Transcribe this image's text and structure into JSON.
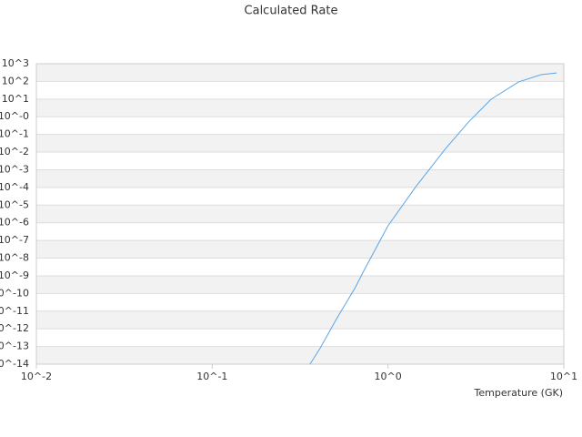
{
  "chart_data": {
    "type": "line",
    "title": "Calculated Rate",
    "x_label": "Temperature (GK)",
    "xscale": "log",
    "yscale": "log",
    "xlim": [
      0.01,
      10
    ],
    "xticks": [
      {
        "value": 0.01,
        "label": "10^-2"
      },
      {
        "value": 0.1,
        "label": "10^-1"
      },
      {
        "value": 1,
        "label": "10^0"
      },
      {
        "value": 10,
        "label": "10^1"
      }
    ],
    "ylim": [
      1e-14,
      1000
    ],
    "yticks": [
      {
        "value": 1000,
        "label": "10^3"
      },
      {
        "value": 100,
        "label": "10^2"
      },
      {
        "value": 10,
        "label": "10^1"
      },
      {
        "value": 1,
        "label": "10^-0"
      },
      {
        "value": 0.1,
        "label": "10^-1"
      },
      {
        "value": 0.01,
        "label": "10^-2"
      },
      {
        "value": 0.001,
        "label": "10^-3"
      },
      {
        "value": 0.0001,
        "label": "10^-4"
      },
      {
        "value": 1e-05,
        "label": "10^-5"
      },
      {
        "value": 1e-06,
        "label": "10^-6"
      },
      {
        "value": 1e-07,
        "label": "10^-7"
      },
      {
        "value": 1e-08,
        "label": "10^-8"
      },
      {
        "value": 1e-09,
        "label": "10^-9"
      },
      {
        "value": 1e-10,
        "label": "10^-10"
      },
      {
        "value": 1e-11,
        "label": "10^-11"
      },
      {
        "value": 1e-12,
        "label": "10^-12"
      },
      {
        "value": 1e-13,
        "label": "10^-13"
      },
      {
        "value": 1e-14,
        "label": "10^-14"
      }
    ],
    "band_color": "#f2f2f2",
    "series": [
      {
        "color": "#5aa5e6",
        "x": [
          0.36,
          0.41,
          0.51,
          0.65,
          0.73,
          1,
          1.44,
          2.13,
          2.87,
          3.86,
          5.52,
          7.43,
          9.1
        ],
        "values": [
          1e-14,
          7.6e-14,
          3.7e-12,
          2.1e-10,
          2e-09,
          6.8e-07,
          0.00011,
          0.016,
          0.5,
          9.8,
          93,
          240,
          300
        ]
      }
    ]
  }
}
